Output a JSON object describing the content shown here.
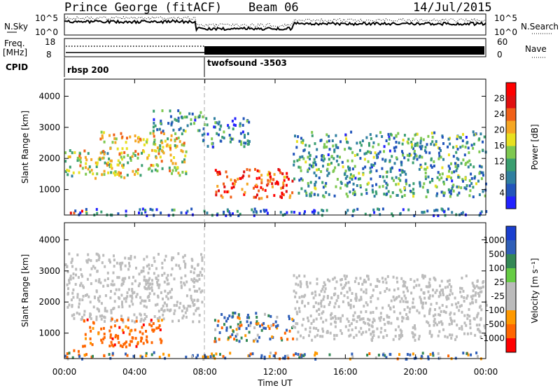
{
  "header": {
    "station": "Prince George (fitACF)",
    "beam": "Beam 06",
    "date": "14/Jul/2015"
  },
  "side_labels": {
    "nsky": "N.Sky",
    "freq": "Freq.",
    "mhz": "[MHz]",
    "cpid": "CPID",
    "nsearch": "N.Search",
    "nave": "Nave"
  },
  "cpid_segments": [
    {
      "label": "rbsp 200",
      "start_hour": 0
    },
    {
      "label": "twofsound -3503",
      "start_hour": 8
    }
  ],
  "noise_axis": {
    "left_ticks": [
      "10^5",
      "10^0"
    ],
    "right_ticks": [
      "10^5",
      "10^0"
    ]
  },
  "freq_axis": {
    "left_ticks": [
      "18",
      "8"
    ],
    "right_ticks": [
      "60",
      "0"
    ]
  },
  "chart_data": [
    {
      "type": "heatmap",
      "title": "",
      "ylabel": "Slant Range [km]",
      "xlabel": "",
      "xlim": [
        "00:00",
        "24:00"
      ],
      "ylim": [
        180,
        4550
      ],
      "yticks": [
        1000,
        2000,
        3000,
        4000
      ],
      "colorbar": {
        "label": "Power [dB]",
        "ticks": [
          4,
          8,
          12,
          16,
          20,
          24,
          28
        ],
        "range": [
          0,
          32
        ]
      },
      "echo_bands": [
        {
          "start_hour": 0.0,
          "end_hour": 3.5,
          "range_km": [
            1400,
            2300
          ],
          "value": 16
        },
        {
          "start_hour": 2.0,
          "end_hour": 6.9,
          "range_km": [
            1500,
            2900
          ],
          "value": 18
        },
        {
          "start_hour": 5.0,
          "end_hour": 7.8,
          "range_km": [
            2900,
            3600
          ],
          "value": 10
        },
        {
          "start_hour": 0.3,
          "end_hour": 1.2,
          "range_km": [
            280,
            480
          ],
          "value": 26
        },
        {
          "start_hour": 8.5,
          "end_hour": 13.0,
          "range_km": [
            750,
            1700
          ],
          "value": 26
        },
        {
          "start_hour": 7.8,
          "end_hour": 10.5,
          "range_km": [
            2400,
            3400
          ],
          "value": 8
        },
        {
          "start_hour": 13.0,
          "end_hour": 24.0,
          "range_km": [
            800,
            2900
          ],
          "value": 10
        },
        {
          "start_hour": 0.0,
          "end_hour": 24.0,
          "range_km": [
            200,
            420
          ],
          "value": 6
        }
      ]
    },
    {
      "type": "heatmap",
      "title": "",
      "ylabel": "Slant Range [km]",
      "xlabel": "Time UT",
      "xlim": [
        "00:00",
        "24:00"
      ],
      "ylim": [
        180,
        4550
      ],
      "yticks": [
        1000,
        2000,
        3000,
        4000
      ],
      "xticks": [
        "00:00",
        "04:00",
        "08:00",
        "12:00",
        "16:00",
        "20:00",
        "00:00"
      ],
      "colorbar": {
        "label": "Velocity [m s⁻¹]",
        "ticks": [
          "1000",
          "500",
          "100",
          "25",
          "-25",
          "-100",
          "-500",
          "-1000"
        ]
      },
      "echo_bands": [
        {
          "start_hour": 0.0,
          "end_hour": 7.8,
          "range_km": [
            1400,
            3600
          ],
          "value": "ground scatter"
        },
        {
          "start_hour": 0.3,
          "end_hour": 1.2,
          "range_km": [
            280,
            480
          ],
          "value": -300
        },
        {
          "start_hour": 1.0,
          "end_hour": 5.5,
          "range_km": [
            600,
            1500
          ],
          "value": -300
        },
        {
          "start_hour": 8.5,
          "end_hour": 13.0,
          "range_km": [
            750,
            1700
          ],
          "value": 60
        },
        {
          "start_hour": 13.0,
          "end_hour": 24.0,
          "range_km": [
            800,
            2900
          ],
          "value": "ground scatter"
        },
        {
          "start_hour": 0.0,
          "end_hour": 24.0,
          "range_km": [
            200,
            420
          ],
          "value": 60
        }
      ]
    }
  ],
  "colors": {
    "power_scale": [
      "#2222ff",
      "#2255bb",
      "#2f7fa0",
      "#3a9e70",
      "#7ec850",
      "#e8e020",
      "#f5a623",
      "#f06018",
      "#e01010",
      "#ff0000"
    ],
    "velocity_scale": [
      "#ff0000",
      "#ff6600",
      "#ff9900",
      "#bbbbbb",
      "#bbbbbb",
      "#66cc44",
      "#338855",
      "#2f5fb8",
      "#1a3fcf"
    ],
    "ground_scatter": "#bcbcbc"
  }
}
